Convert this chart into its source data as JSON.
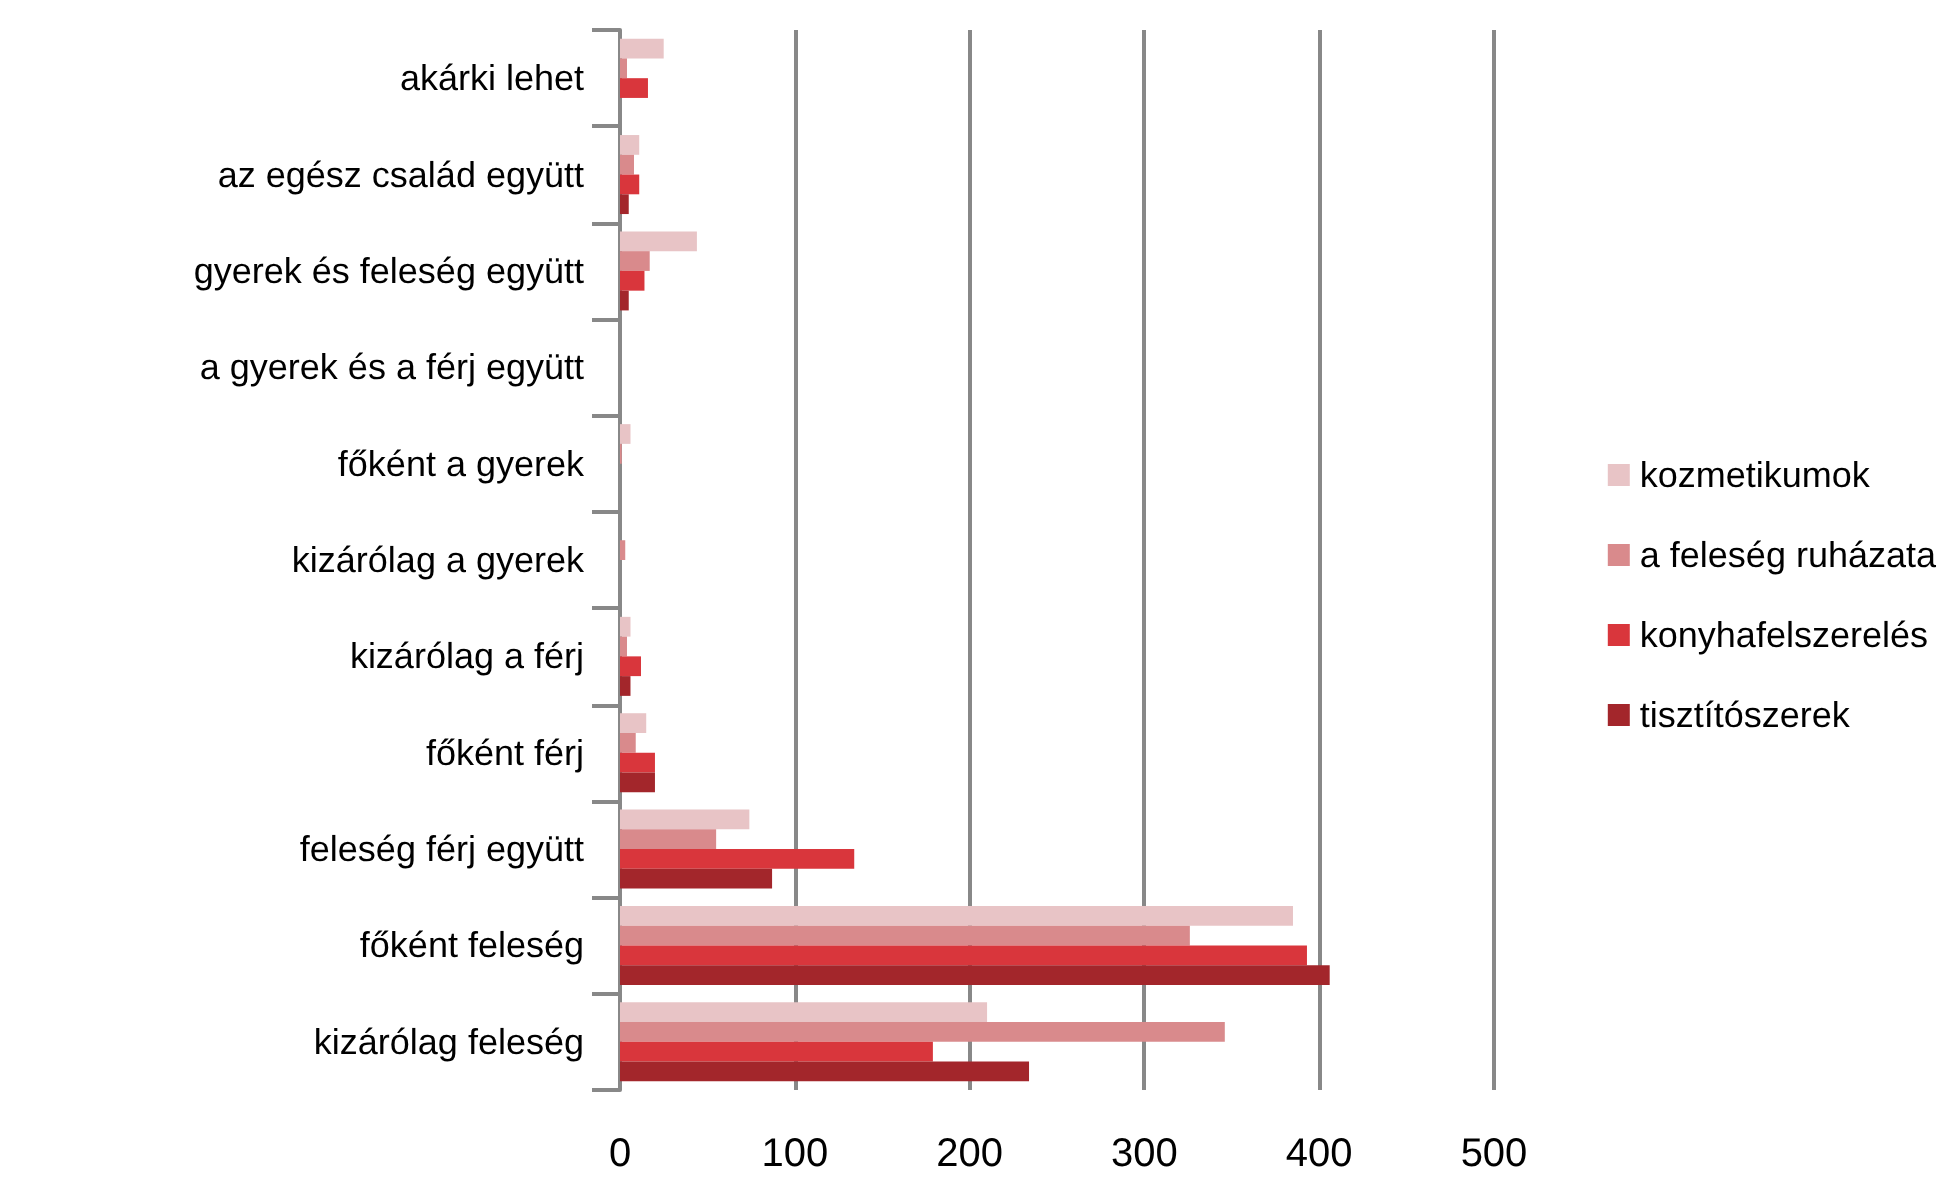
{
  "chart_data": {
    "type": "bar",
    "orientation": "horizontal",
    "categories": [
      "akárki lehet",
      "az egész család együtt",
      "gyerek és feleség együtt",
      "a gyerek és a férj együtt",
      "főként a gyerek",
      "kizárólag a gyerek",
      "kizárólag a férj",
      "főként férj",
      "feleség férj együtt",
      "főként feleség",
      "kizárólag feleség"
    ],
    "series": [
      {
        "name": "kozmetikumok",
        "color": "#e8c4c6",
        "values": [
          25,
          11,
          44,
          0,
          6,
          null,
          6,
          15,
          74,
          385,
          210
        ]
      },
      {
        "name": "a feleség ruházata",
        "color": "#d98a8c",
        "values": [
          4,
          8,
          17,
          0,
          1,
          3,
          4,
          9,
          55,
          326,
          346
        ]
      },
      {
        "name": "konyhafelszerelés",
        "color": "#d9363c",
        "values": [
          16,
          11,
          14,
          0,
          0,
          0,
          12,
          20,
          134,
          393,
          179
        ]
      },
      {
        "name": "tisztítószerek",
        "color": "#a3262b",
        "values": [
          0,
          5,
          5,
          0,
          0,
          0,
          6,
          20,
          87,
          406,
          234
        ]
      }
    ],
    "xlim": [
      0,
      500
    ],
    "xticks": [
      0,
      100,
      200,
      300,
      400,
      500
    ],
    "grid": "x",
    "legend": "right"
  }
}
